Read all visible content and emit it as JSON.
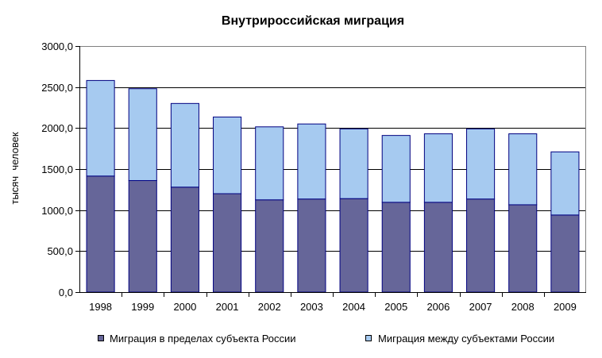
{
  "chart_data": {
    "type": "bar",
    "stacked": true,
    "title": "Внутрироссийская миграция",
    "xlabel": "",
    "ylabel": "тысяч  человек",
    "categories": [
      "1998",
      "1999",
      "2000",
      "2001",
      "2002",
      "2003",
      "2004",
      "2005",
      "2006",
      "2007",
      "2008",
      "2009"
    ],
    "series": [
      {
        "name": "Миграция в пределах субъекта России",
        "color": "#666699",
        "values": [
          1415,
          1360,
          1280,
          1200,
          1125,
          1135,
          1140,
          1095,
          1095,
          1135,
          1065,
          940
        ]
      },
      {
        "name": "Миграция между субъектами России",
        "color": "#a6caf0",
        "values": [
          1165,
          1120,
          1020,
          935,
          890,
          915,
          850,
          815,
          835,
          855,
          865,
          770
        ]
      }
    ],
    "ylim": [
      0,
      3000
    ],
    "yticks": [
      0,
      500,
      1000,
      1500,
      2000,
      2500,
      3000
    ],
    "ytick_labels": [
      "0,0",
      "500,0",
      "1000,0",
      "1500,0",
      "2000,0",
      "2500,0",
      "3000,0"
    ],
    "grid": true,
    "legend_position": "bottom"
  }
}
